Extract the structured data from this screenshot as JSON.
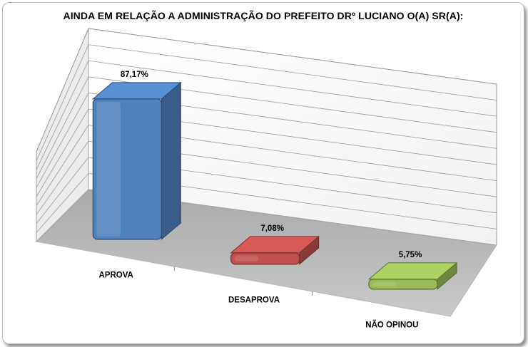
{
  "chart_data": {
    "type": "bar",
    "title": "AINDA EM RELAÇÃO A ADMINISTRAÇÃO DO PREFEITO DRº LUCIANO  O(A) SR(A):",
    "categories": [
      "APROVA",
      "DESAPROVA",
      "NÃO OPINOU"
    ],
    "values": [
      87.17,
      7.08,
      5.75
    ],
    "data_labels": [
      "87,17%",
      "7,08%",
      "5,75%"
    ],
    "colors": [
      "#4f81bd",
      "#c0504d",
      "#9bbb59"
    ],
    "ylim": [
      0,
      100
    ],
    "grid": true,
    "legend": "none",
    "style": "3d-bar"
  }
}
